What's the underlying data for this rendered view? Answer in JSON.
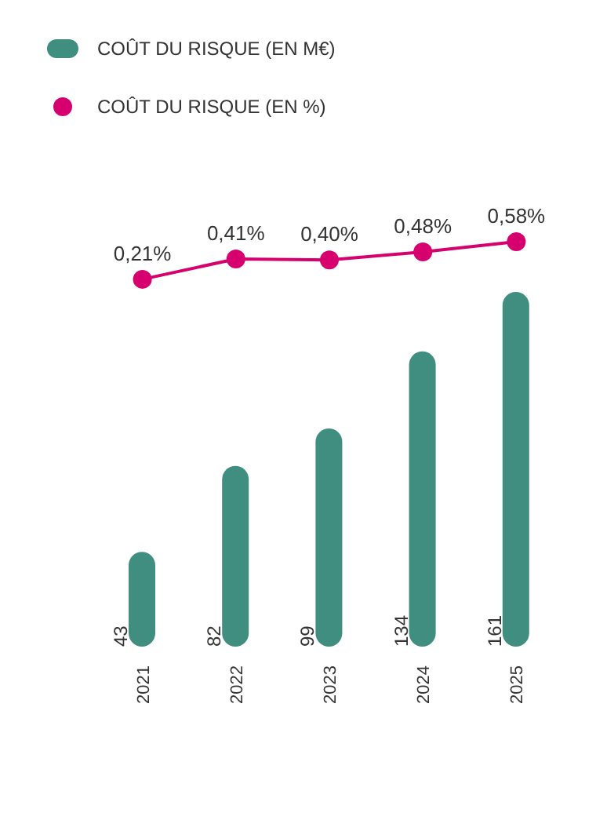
{
  "chart_data": [
    {
      "type": "bar",
      "categories": [
        "2021",
        "2022",
        "2023",
        "2024",
        "2025"
      ],
      "series": [
        {
          "name": "COÛT DU RISQUE (EN M€)",
          "color": "#3f8e80",
          "values": [
            43,
            82,
            99,
            134,
            161
          ],
          "value_labels": [
            "43",
            "82",
            "99",
            "134",
            "161"
          ]
        }
      ],
      "legend": "top left",
      "tick_labels": "x"
    },
    {
      "type": "line",
      "categories": [
        null,
        null,
        null,
        null,
        null
      ],
      "series": [
        {
          "name": "COÛT DU RISQUE (EN %)",
          "color": "#d6006f",
          "values": [
            0.21,
            0.41,
            0.4,
            0.48,
            0.58
          ],
          "value_labels": [
            "0,21%",
            "0,41%",
            "0,40%",
            "0,48%",
            "0,58%"
          ]
        }
      ],
      "marker": "circle",
      "legend": "top left",
      "tick_labels": false
    }
  ]
}
